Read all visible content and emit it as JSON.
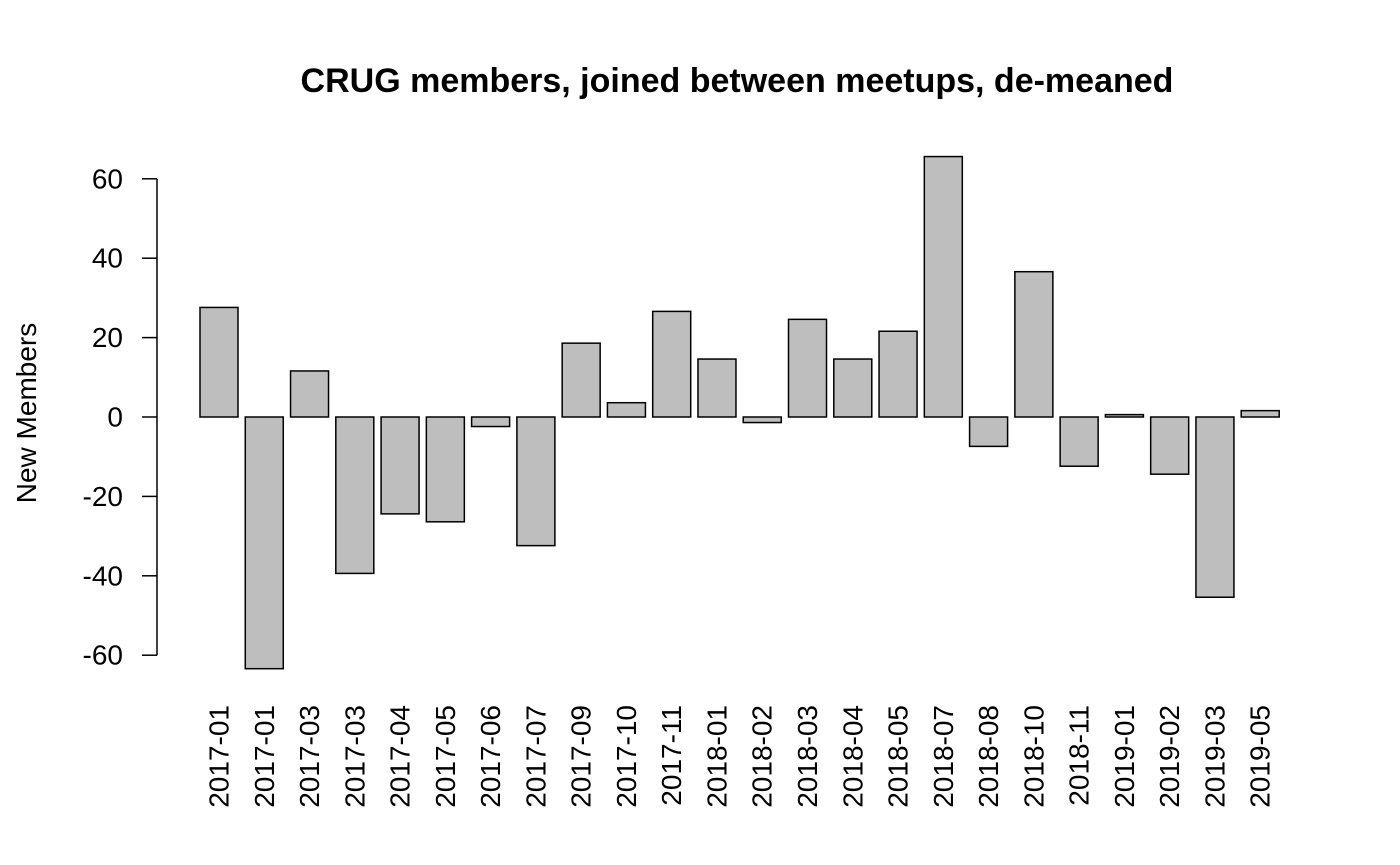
{
  "chart_data": {
    "type": "bar",
    "title": "CRUG members, joined between meetups, de-meaned",
    "xlabel": "",
    "ylabel": "New Members",
    "ylim": [
      -65,
      66
    ],
    "yticks": [
      -60,
      -40,
      -20,
      0,
      20,
      40,
      60
    ],
    "categories": [
      "2017-01",
      "2017-01",
      "2017-03",
      "2017-03",
      "2017-04",
      "2017-05",
      "2017-06",
      "2017-07",
      "2017-09",
      "2017-10",
      "2017-11",
      "2018-01",
      "2018-02",
      "2018-03",
      "2018-04",
      "2018-05",
      "2018-07",
      "2018-08",
      "2018-10",
      "2018-11",
      "2019-01",
      "2019-02",
      "2019-03",
      "2019-05"
    ],
    "values": [
      27.6,
      -63.4,
      11.6,
      -39.4,
      -24.4,
      -26.4,
      -2.4,
      -32.4,
      18.6,
      3.6,
      26.6,
      14.6,
      -1.4,
      24.6,
      14.6,
      21.6,
      65.6,
      -7.4,
      36.6,
      -12.4,
      0.6,
      -14.4,
      -45.4,
      1.6
    ],
    "colors": {
      "bar_fill": "#bebebe",
      "bar_stroke": "#000000"
    },
    "grid": false,
    "legend": "none"
  }
}
